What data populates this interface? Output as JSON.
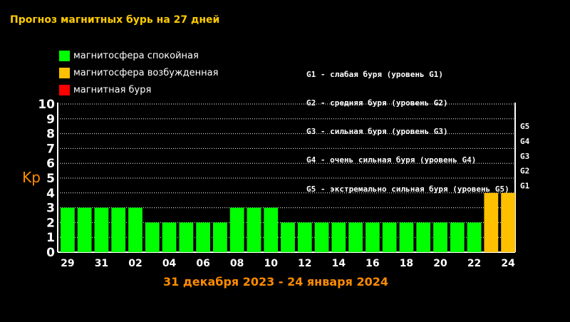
{
  "page": {
    "title": "Прогноз магнитных бурь на 27 дней"
  },
  "legend": {
    "items": [
      {
        "label": "магнитосфера спокойная",
        "color": "#00ff00"
      },
      {
        "label": "магнитосфера возбужденная",
        "color": "#ffc000"
      },
      {
        "label": "магнитная буря",
        "color": "#ff0000"
      }
    ]
  },
  "storm_legend": [
    "G1 - слабая буря (уровень G1)",
    "G2 - средняя буря (уровень G2)",
    "G3 - сильная буря (уровень G3)",
    "G4 - очень сильная буря (уровень G4)",
    "G5 - экстремально сильная буря (уровень G5)"
  ],
  "chart_data": {
    "type": "bar",
    "ylabel": "Kp",
    "xlabel": "31 декабря 2023 - 24 января 2024",
    "ylim": [
      0,
      10
    ],
    "yticks": [
      "0",
      "1",
      "2",
      "3",
      "4",
      "5",
      "6",
      "7",
      "8",
      "9",
      "10"
    ],
    "grid": true,
    "g_levels": [
      {
        "label": "G1",
        "value": 5
      },
      {
        "label": "G2",
        "value": 6
      },
      {
        "label": "G3",
        "value": 7
      },
      {
        "label": "G4",
        "value": 8
      },
      {
        "label": "G5",
        "value": 9
      }
    ],
    "x_tick_labels": [
      "29",
      "31",
      "02",
      "04",
      "06",
      "08",
      "10",
      "12",
      "14",
      "16",
      "18",
      "20",
      "22",
      "24"
    ],
    "values": [
      3,
      3,
      3,
      3,
      3,
      2,
      2,
      2,
      2,
      2,
      3,
      3,
      3,
      2,
      2,
      2,
      2,
      2,
      2,
      2,
      2,
      2,
      2,
      2,
      2,
      4,
      4
    ],
    "colors": {
      "quiet": "#00ff00",
      "active": "#ffc000",
      "storm": "#ff0000",
      "xlabel": "#ff8c00",
      "ylabel": "#ff8c00",
      "grid": "#ffffff"
    }
  }
}
